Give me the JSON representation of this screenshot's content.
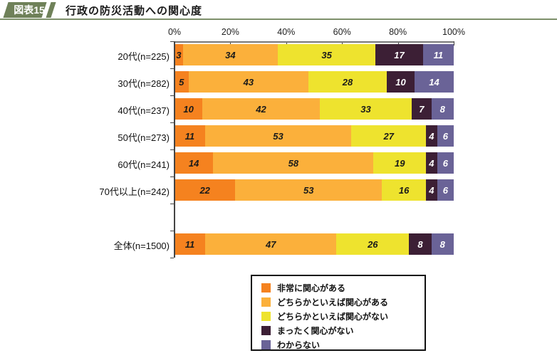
{
  "header": {
    "tag_label": "図表15",
    "title": "行政の防災活動への関心度",
    "tag_color": "#6f8159",
    "line_color": "#7d906a"
  },
  "chart_data": {
    "type": "bar",
    "orientation": "horizontal",
    "stacked": true,
    "title": "行政の防災活動への関心度",
    "xlim": [
      0,
      100
    ],
    "x_ticks": [
      "0%",
      "20%",
      "40%",
      "60%",
      "80%",
      "100%"
    ],
    "grid": false,
    "legend_position": "bottom",
    "separator_after_index": 5,
    "categories": [
      "20代(n=225)",
      "30代(n=282)",
      "40代(n=237)",
      "50代(n=273)",
      "60代(n=241)",
      "70代以上(n=242)",
      "全体(n=1500)"
    ],
    "series": [
      {
        "name": "非常に関心がある",
        "color": "#f5821f",
        "label_color": "#1a1a1a",
        "values": [
          3,
          5,
          10,
          11,
          14,
          22,
          11
        ]
      },
      {
        "name": "どちらかといえば関心がある",
        "color": "#fbb03b",
        "label_color": "#1a1a1a",
        "values": [
          34,
          43,
          42,
          53,
          58,
          53,
          47
        ]
      },
      {
        "name": "どちらかといえば関心がない",
        "color": "#eee32e",
        "label_color": "#1a1a1a",
        "values": [
          35,
          28,
          33,
          27,
          19,
          16,
          26
        ]
      },
      {
        "name": "まったく関心がない",
        "color": "#3c1f35",
        "label_color": "#ffffff",
        "values": [
          17,
          10,
          7,
          4,
          4,
          4,
          8
        ]
      },
      {
        "name": "わからない",
        "color": "#6a6397",
        "label_color": "#ffffff",
        "values": [
          11,
          14,
          8,
          6,
          6,
          6,
          8
        ]
      }
    ]
  }
}
